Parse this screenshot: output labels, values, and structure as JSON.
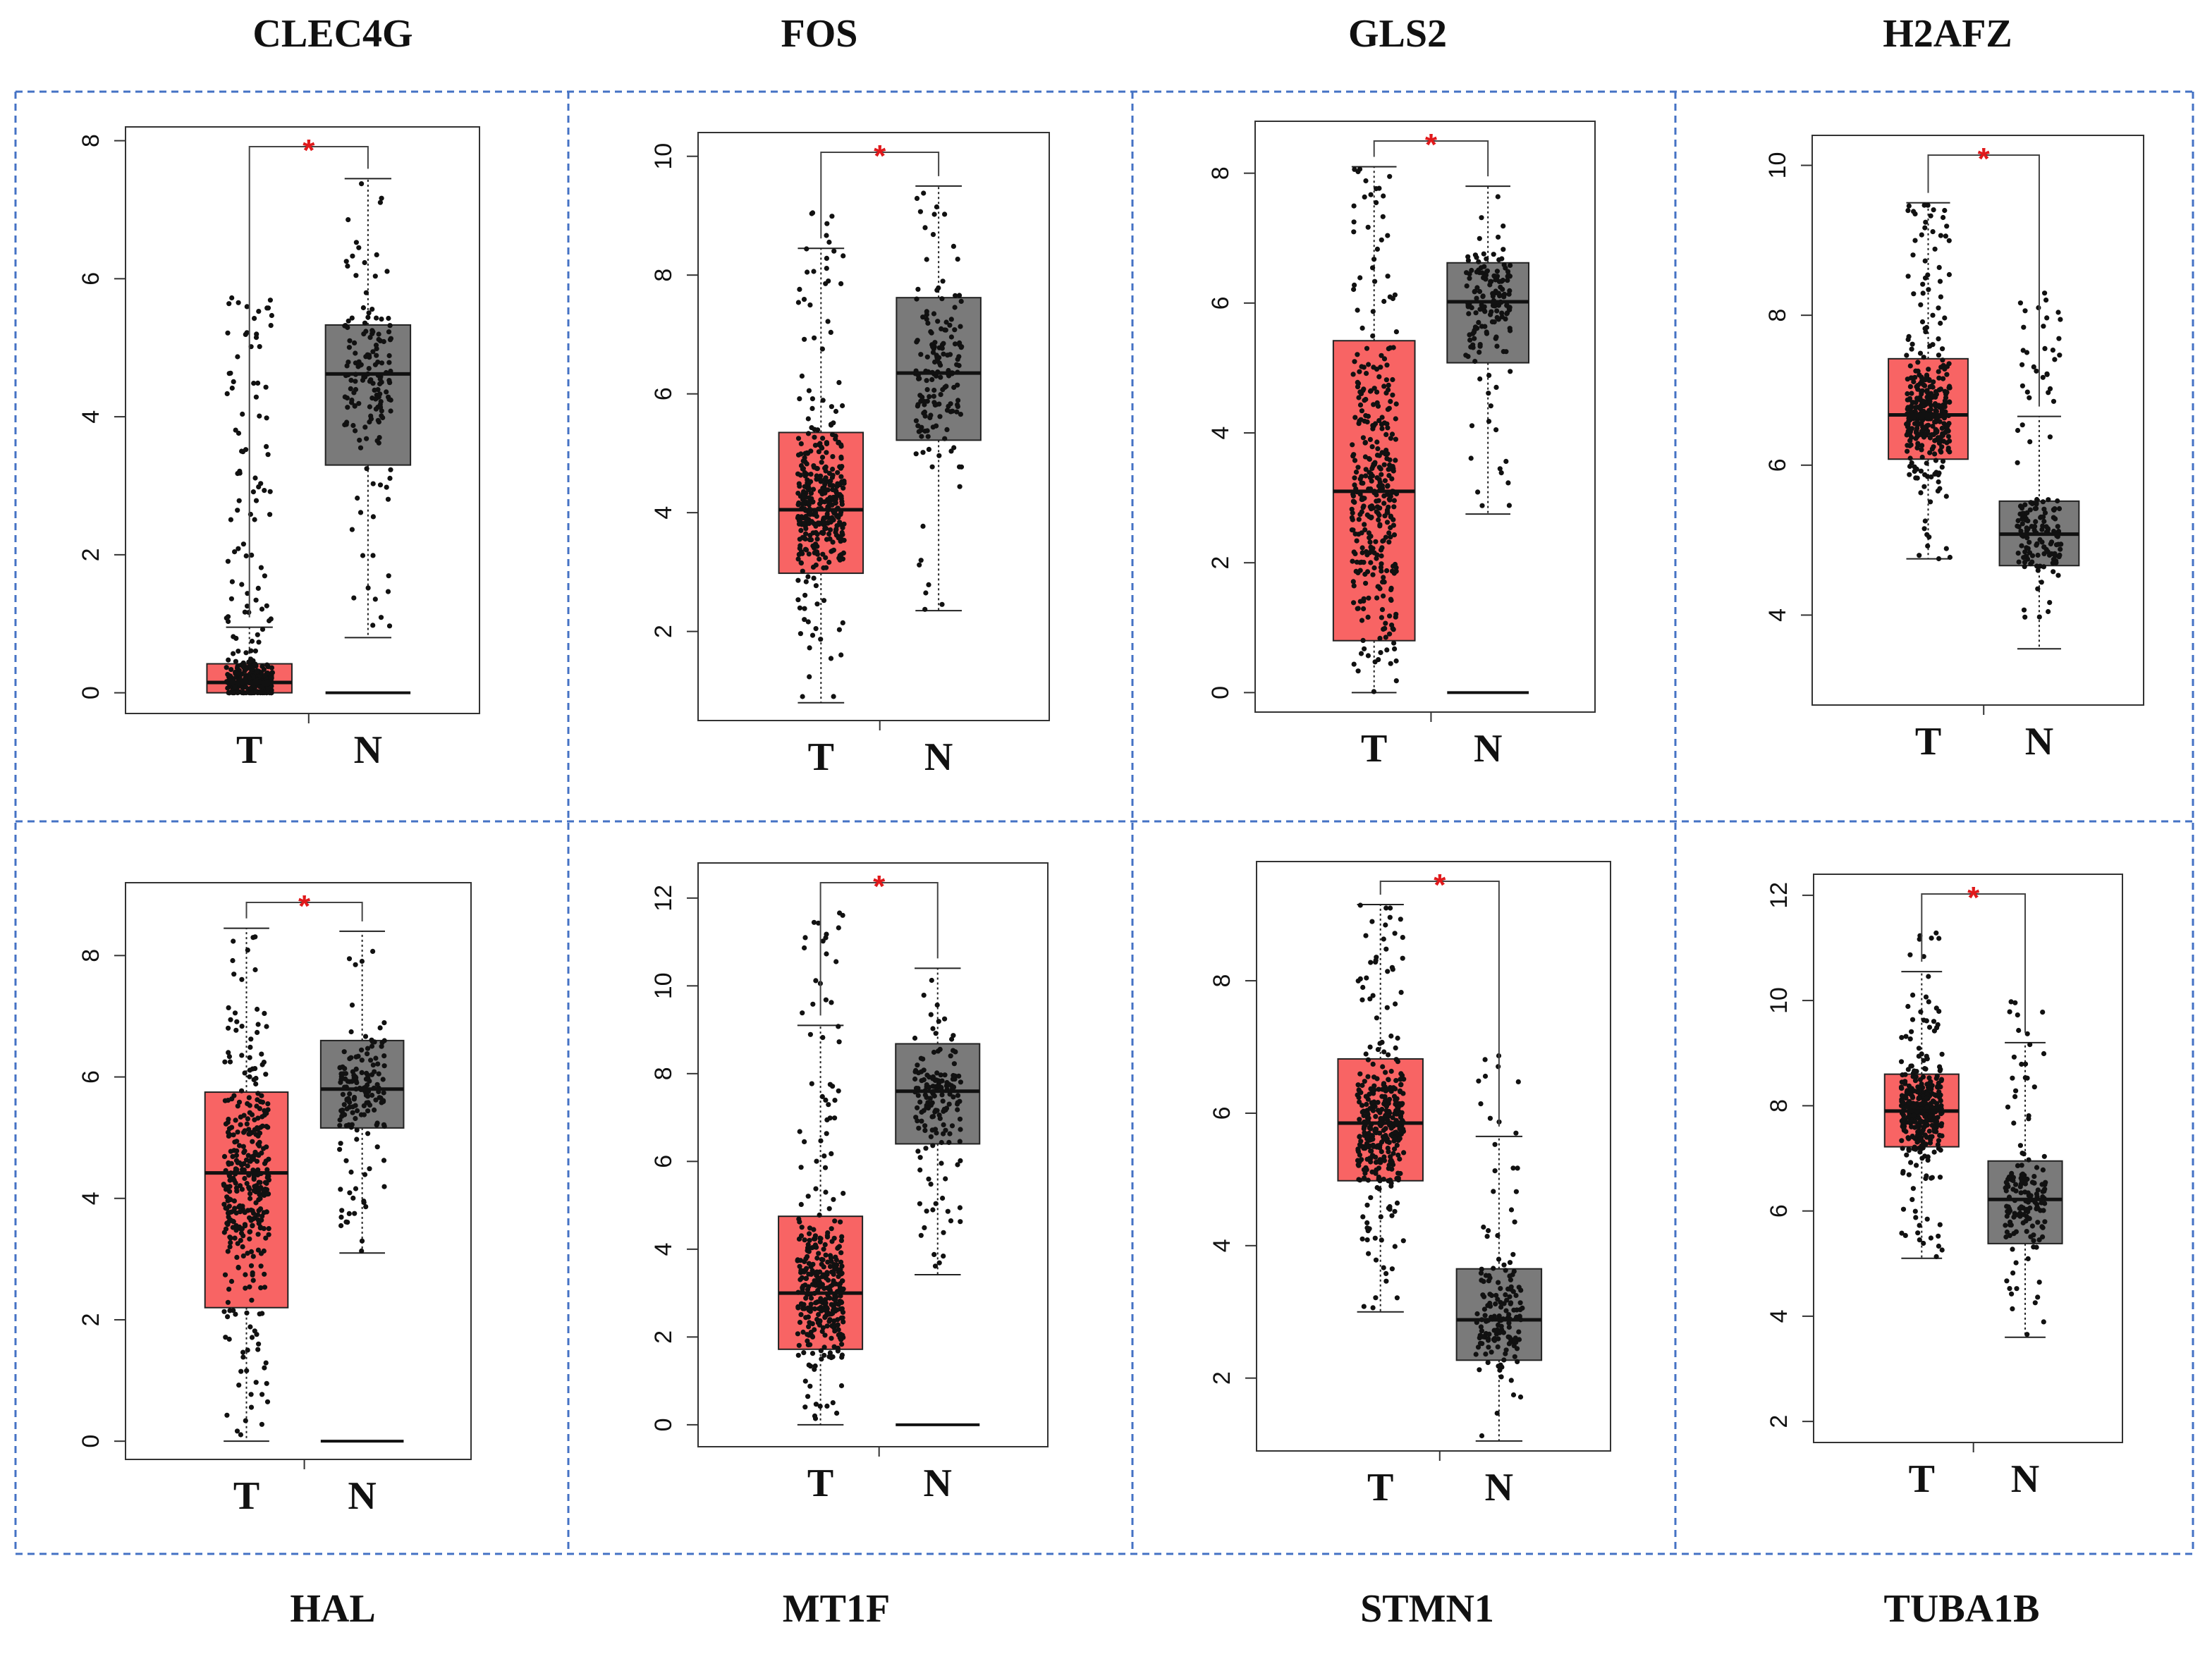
{
  "figure": {
    "colors": {
      "tumor": "#f86464",
      "normal": "#7a7a7a",
      "significance": "#e0191b",
      "grid_border": "#4472c4"
    },
    "group_labels": [
      "T",
      "N"
    ],
    "significance_marker": "*"
  },
  "chart_data": [
    {
      "type": "box",
      "title": "CLEC4G",
      "ylim": [
        -0.3,
        8.2
      ],
      "yticks": [
        0,
        2,
        4,
        6,
        8
      ],
      "series": [
        {
          "name": "T",
          "color": "#f86464",
          "q1": 0.0,
          "median": 0.15,
          "q3": 0.42,
          "whisker_low": 0.0,
          "whisker_high": 0.95,
          "n_points": 320,
          "point_max": 5.9
        },
        {
          "name": "N",
          "color": "#7a7a7a",
          "q1": 3.3,
          "median": 4.62,
          "q3": 5.33,
          "whisker_low": 0.8,
          "whisker_high": 7.45,
          "n_points": 160,
          "point_max": 7.4,
          "zero_line": true
        }
      ],
      "significant": true
    },
    {
      "type": "box",
      "title": "FOS",
      "ylim": [
        0.5,
        10.4
      ],
      "yticks": [
        2,
        4,
        6,
        8,
        10
      ],
      "series": [
        {
          "name": "T",
          "color": "#f86464",
          "q1": 2.98,
          "median": 4.05,
          "q3": 5.35,
          "whisker_low": 0.8,
          "whisker_high": 8.45,
          "n_points": 360,
          "point_max": 9.2
        },
        {
          "name": "N",
          "color": "#7a7a7a",
          "q1": 5.22,
          "median": 6.35,
          "q3": 7.62,
          "whisker_low": 2.35,
          "whisker_high": 9.5,
          "n_points": 160,
          "point_max": 9.5
        }
      ],
      "significant": true
    },
    {
      "type": "box",
      "title": "GLS2",
      "ylim": [
        -0.3,
        8.8
      ],
      "yticks": [
        0,
        2,
        4,
        6,
        8
      ],
      "series": [
        {
          "name": "T",
          "color": "#f86464",
          "q1": 0.8,
          "median": 3.1,
          "q3": 5.42,
          "whisker_low": 0.0,
          "whisker_high": 8.1,
          "n_points": 360,
          "point_max": 8.1
        },
        {
          "name": "N",
          "color": "#7a7a7a",
          "q1": 5.08,
          "median": 6.02,
          "q3": 6.62,
          "whisker_low": 2.75,
          "whisker_high": 7.8,
          "n_points": 160,
          "point_max": 7.8,
          "zero_line": true
        }
      ],
      "significant": true
    },
    {
      "type": "box",
      "title": "H2AFZ",
      "ylim": [
        2.8,
        10.4
      ],
      "yticks": [
        4,
        6,
        8,
        10
      ],
      "series": [
        {
          "name": "T",
          "color": "#f86464",
          "q1": 6.08,
          "median": 6.67,
          "q3": 7.42,
          "whisker_low": 4.75,
          "whisker_high": 9.5,
          "n_points": 360,
          "point_max": 9.5
        },
        {
          "name": "N",
          "color": "#7a7a7a",
          "q1": 4.66,
          "median": 5.08,
          "q3": 5.52,
          "whisker_low": 3.55,
          "whisker_high": 6.65,
          "n_points": 160,
          "point_max": 8.45
        }
      ],
      "significant": true
    },
    {
      "type": "box",
      "title": "HAL",
      "ylim": [
        -0.3,
        9.2
      ],
      "yticks": [
        0,
        2,
        4,
        6,
        8
      ],
      "series": [
        {
          "name": "T",
          "color": "#f86464",
          "q1": 2.2,
          "median": 4.42,
          "q3": 5.75,
          "whisker_low": 0.0,
          "whisker_high": 8.45,
          "n_points": 360,
          "point_max": 8.4
        },
        {
          "name": "N",
          "color": "#7a7a7a",
          "q1": 5.16,
          "median": 5.8,
          "q3": 6.6,
          "whisker_low": 3.1,
          "whisker_high": 8.4,
          "n_points": 160,
          "point_max": 8.4,
          "zero_line": true
        }
      ],
      "significant": true
    },
    {
      "type": "box",
      "title": "MT1F",
      "ylim": [
        -0.5,
        12.8
      ],
      "yticks": [
        0,
        2,
        4,
        6,
        8,
        10,
        12
      ],
      "series": [
        {
          "name": "T",
          "color": "#f86464",
          "q1": 1.72,
          "median": 3.0,
          "q3": 4.75,
          "whisker_low": 0.0,
          "whisker_high": 9.1,
          "n_points": 360,
          "point_max": 11.9
        },
        {
          "name": "N",
          "color": "#7a7a7a",
          "q1": 6.4,
          "median": 7.6,
          "q3": 8.68,
          "whisker_low": 3.42,
          "whisker_high": 10.4,
          "n_points": 160,
          "point_max": 10.4,
          "zero_line": true
        }
      ],
      "significant": true
    },
    {
      "type": "box",
      "title": "STMN1",
      "ylim": [
        0.9,
        9.8
      ],
      "yticks": [
        2,
        4,
        6,
        8
      ],
      "series": [
        {
          "name": "T",
          "color": "#f86464",
          "q1": 4.98,
          "median": 5.85,
          "q3": 6.82,
          "whisker_low": 3.0,
          "whisker_high": 9.15,
          "n_points": 360,
          "point_max": 9.15
        },
        {
          "name": "N",
          "color": "#7a7a7a",
          "q1": 2.27,
          "median": 2.88,
          "q3": 3.65,
          "whisker_low": 1.05,
          "whisker_high": 5.65,
          "n_points": 160,
          "point_max": 6.9
        }
      ],
      "significant": true
    },
    {
      "type": "box",
      "title": "TUBA1B",
      "ylim": [
        1.6,
        12.4
      ],
      "yticks": [
        2,
        4,
        6,
        8,
        10,
        12
      ],
      "series": [
        {
          "name": "T",
          "color": "#f86464",
          "q1": 7.22,
          "median": 7.9,
          "q3": 8.6,
          "whisker_low": 5.1,
          "whisker_high": 10.55,
          "n_points": 360,
          "point_max": 11.3
        },
        {
          "name": "N",
          "color": "#7a7a7a",
          "q1": 5.38,
          "median": 6.22,
          "q3": 6.95,
          "whisker_low": 3.6,
          "whisker_high": 9.2,
          "n_points": 160,
          "point_max": 10.0
        }
      ],
      "significant": true
    }
  ]
}
